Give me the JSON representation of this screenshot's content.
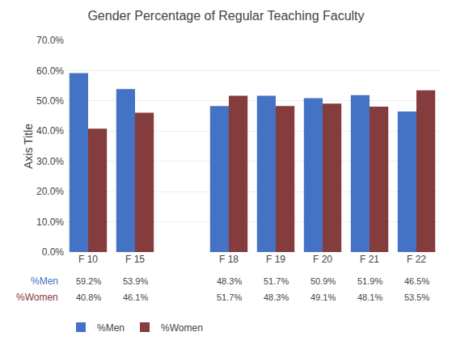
{
  "chart_data": {
    "type": "bar",
    "title": "Gender Percentage of Regular Teaching Faculty",
    "ylabel": "Axis Title",
    "categories": [
      "F 10",
      "F 15",
      null,
      "F 18",
      "F 19",
      "F 20",
      "F 21",
      "F 22"
    ],
    "series": [
      {
        "name": "%Men",
        "color": "#4472C4",
        "values": [
          59.2,
          53.9,
          null,
          48.3,
          51.7,
          50.9,
          51.9,
          46.5
        ],
        "value_labels": [
          "59.2%",
          "53.9%",
          null,
          "48.3%",
          "51.7%",
          "50.9%",
          "51.9%",
          "46.5%"
        ]
      },
      {
        "name": "%Women",
        "color": "#843C3C",
        "values": [
          40.8,
          46.1,
          null,
          51.7,
          48.3,
          49.1,
          48.1,
          53.5
        ],
        "value_labels": [
          "40.8%",
          "46.1%",
          null,
          "51.7%",
          "48.3%",
          "49.1%",
          "48.1%",
          "53.5%"
        ]
      }
    ],
    "ylim": [
      0,
      70
    ],
    "yticks": [
      {
        "value": 0,
        "label": "0.0%"
      },
      {
        "value": 10,
        "label": "10.0%"
      },
      {
        "value": 20,
        "label": "20.0%"
      },
      {
        "value": 30,
        "label": "30.0%"
      },
      {
        "value": 40,
        "label": "40.0%"
      },
      {
        "value": 50,
        "label": "50.0%"
      },
      {
        "value": 60,
        "label": "60.0%"
      },
      {
        "value": 70,
        "label": "70.0%"
      }
    ],
    "grid": true,
    "legend": "lower left"
  }
}
